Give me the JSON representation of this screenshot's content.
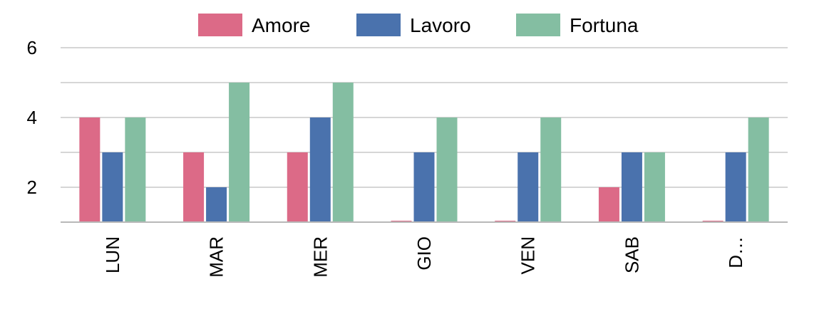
{
  "chart_data": {
    "type": "bar",
    "title": "",
    "xlabel": "",
    "ylabel": "",
    "categories": [
      "LUN",
      "MAR",
      "MER",
      "GIO",
      "VEN",
      "SAB",
      "D…"
    ],
    "series": [
      {
        "name": "Amore",
        "color": "#dc6a87",
        "values": [
          4,
          3,
          3,
          1,
          1,
          2,
          1
        ]
      },
      {
        "name": "Lavoro",
        "color": "#4a72ad",
        "values": [
          3,
          2,
          4,
          3,
          3,
          3,
          3
        ]
      },
      {
        "name": "Fortuna",
        "color": "#84bea2",
        "values": [
          4,
          5,
          5,
          4,
          4,
          3,
          4
        ]
      }
    ],
    "yticks": [
      {
        "value": 2,
        "label": "2"
      },
      {
        "value": 4,
        "label": "4"
      },
      {
        "value": 6,
        "label": "6"
      }
    ],
    "ylim": [
      1,
      6
    ],
    "gridlines": [
      1,
      2,
      3,
      4,
      5,
      6
    ],
    "grid": true,
    "legend_position": "top-center"
  }
}
